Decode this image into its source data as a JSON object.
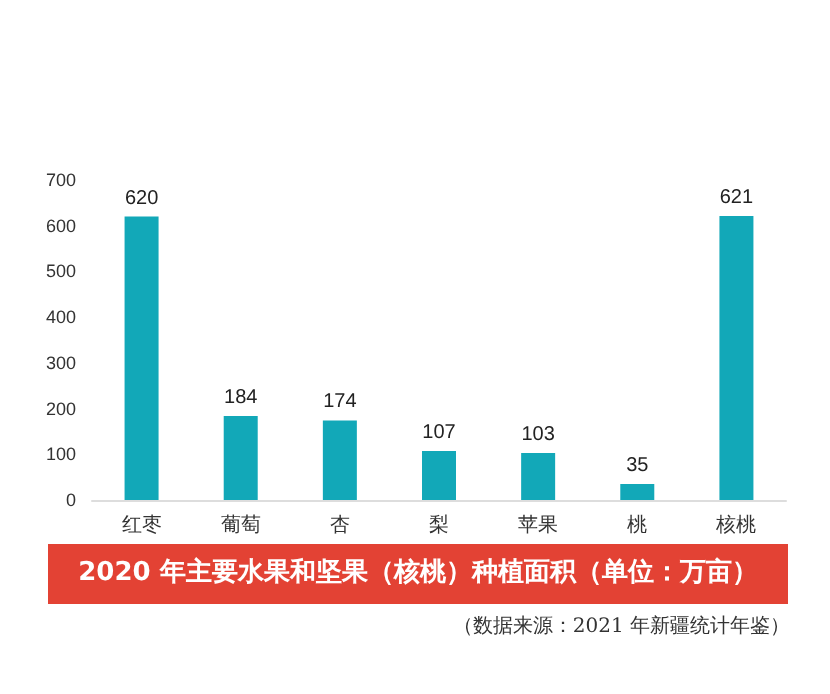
{
  "chart_data": {
    "type": "bar",
    "title": "2020 年主要水果和坚果（核桃）种植面积（单位：万亩）",
    "categories": [
      "红枣",
      "葡萄",
      "杏",
      "梨",
      "苹果",
      "桃",
      "核桃"
    ],
    "values": [
      620,
      184,
      174,
      107,
      103,
      35,
      621
    ],
    "color": "#12a8b8",
    "ylim": [
      0,
      700
    ],
    "yticks": [
      0,
      100,
      200,
      300,
      400,
      500,
      600,
      700
    ],
    "grid": false,
    "data_labels": true,
    "annotations": [
      "（数据来源：2021 年新疆统计年鉴）"
    ]
  }
}
